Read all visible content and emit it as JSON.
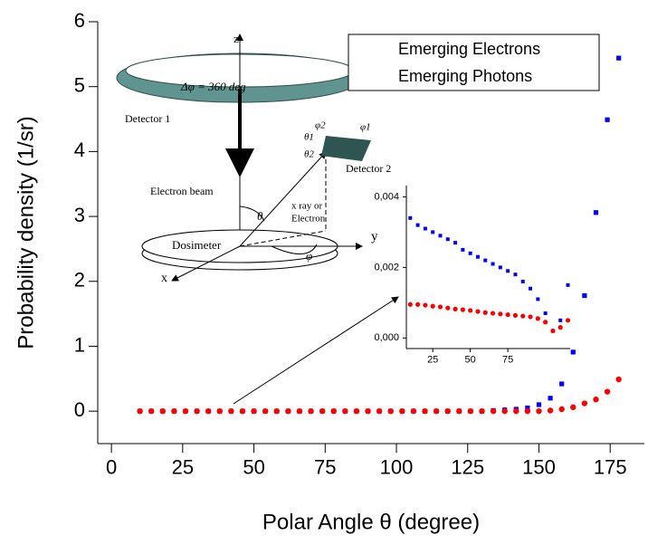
{
  "chart_data": [
    {
      "type": "scatter",
      "xlabel": "Polar Angle θ (degree)",
      "ylabel": "Probability density (1/sr)",
      "x": [
        10,
        14,
        18,
        22,
        26,
        30,
        34,
        38,
        42,
        46,
        50,
        54,
        58,
        62,
        66,
        70,
        74,
        78,
        82,
        86,
        90,
        94,
        98,
        102,
        106,
        110,
        114,
        118,
        122,
        126,
        130,
        134,
        138,
        142,
        146,
        150,
        154,
        158,
        162,
        166,
        170,
        174,
        178
      ],
      "series": [
        {
          "name": "Emerging Electrons",
          "color": "#0000ff",
          "marker": "square",
          "values": [
            0,
            0,
            0,
            0,
            0,
            0,
            0,
            0,
            0,
            0,
            0,
            0,
            0,
            0,
            0,
            0,
            0,
            0,
            0,
            0,
            0,
            0,
            0,
            0,
            0,
            0,
            0,
            0,
            0,
            0,
            0,
            0.01,
            0.02,
            0.03,
            0.05,
            0.1,
            0.2,
            0.42,
            0.91,
            1.78,
            3.06,
            4.49,
            5.44
          ]
        },
        {
          "name": "Emerging Photons",
          "color": "#ff0000",
          "marker": "circle",
          "values": [
            0,
            0,
            0,
            0,
            0,
            0,
            0,
            0,
            0,
            0,
            0,
            0,
            0,
            0,
            0,
            0,
            0,
            0,
            0,
            0,
            0,
            0,
            0,
            0,
            0,
            0,
            0,
            0,
            0,
            0,
            0,
            0,
            0,
            0,
            0,
            0,
            0.01,
            0.03,
            0.06,
            0.12,
            0.18,
            0.3,
            0.49
          ]
        }
      ],
      "xlim": [
        -4.8,
        187
      ],
      "ylim": [
        -0.5,
        6
      ],
      "xticks": [
        0,
        25,
        50,
        75,
        100,
        125,
        150,
        175
      ],
      "yticks": [
        0,
        1,
        2,
        3,
        4,
        5,
        6
      ],
      "legend": "upper right",
      "annotations": [
        "z",
        "Δφ = 360 deg",
        "Detector 1",
        "Electron beam",
        "θ",
        "x ray  or",
        "Electron",
        "Dosimeter",
        "φ",
        "y",
        "x",
        "Detector 2",
        "θ1",
        "θ2",
        "φ2",
        "φ1"
      ]
    },
    {
      "type": "scatter",
      "x": [
        10,
        15,
        20,
        25,
        30,
        35,
        40,
        45,
        50,
        55,
        60,
        65,
        70,
        75,
        80,
        85,
        90,
        95,
        100,
        105,
        110,
        115
      ],
      "series": [
        {
          "color": "#0000ff",
          "marker": "square",
          "values": [
            0.0034,
            0.0032,
            0.0031,
            0.003,
            0.0029,
            0.0028,
            0.0027,
            0.0025,
            0.0024,
            0.0023,
            0.0022,
            0.0021,
            0.002,
            0.0019,
            0.0018,
            0.0016,
            0.0014,
            0.0011,
            0.0007,
            0.0002,
            0.0005,
            0.0015
          ]
        },
        {
          "color": "#ff0000",
          "marker": "circle",
          "values": [
            0.00095,
            0.00095,
            0.00093,
            0.0009,
            0.00088,
            0.00085,
            0.00082,
            0.0008,
            0.00078,
            0.00075,
            0.00072,
            0.0007,
            0.00068,
            0.00066,
            0.00064,
            0.00062,
            0.0006,
            0.00055,
            0.00045,
            0.0002,
            0.0003,
            0.0005
          ]
        }
      ],
      "xlim": [
        7.4,
        116.5
      ],
      "ylim": [
        -0.0003,
        0.00432
      ],
      "xticks": [
        25,
        50,
        75
      ],
      "yticks": [
        {
          "value": 0,
          "label": "0,000"
        },
        {
          "value": 0.002,
          "label": "0,002"
        },
        {
          "value": 0.004,
          "label": "0,004"
        }
      ]
    }
  ]
}
